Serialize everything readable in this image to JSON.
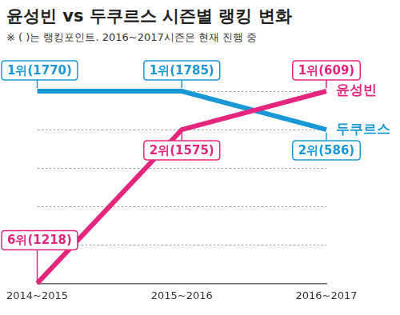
{
  "chart_data": {
    "type": "line",
    "title": "윤성빈 vs 두쿠르스 시즌별 랭킹 변화",
    "subtitle": "※ ( )는 랭킹포인트. 2016~2017시즌은 현재 진행 중",
    "categories": [
      "2014~2015",
      "2015~2016",
      "2016~2017"
    ],
    "series": [
      {
        "name": "윤성빈",
        "color": "#e5267f",
        "values": [
          6,
          2,
          1
        ],
        "value_labels": [
          "6위(1218)",
          "2위(1575)",
          "1위(609)"
        ]
      },
      {
        "name": "두쿠르스",
        "color": "#1a98d5",
        "values": [
          1,
          1,
          2
        ],
        "value_labels": [
          "1위(1770)",
          "1위(1785)",
          "2위(586)"
        ]
      }
    ],
    "ylim": [
      6,
      1
    ],
    "yticks": [
      1,
      2,
      3,
      4,
      5,
      6
    ],
    "grid": true,
    "data_labels": true,
    "tick_labels": "x",
    "marker": "none",
    "line_style": "solid"
  }
}
